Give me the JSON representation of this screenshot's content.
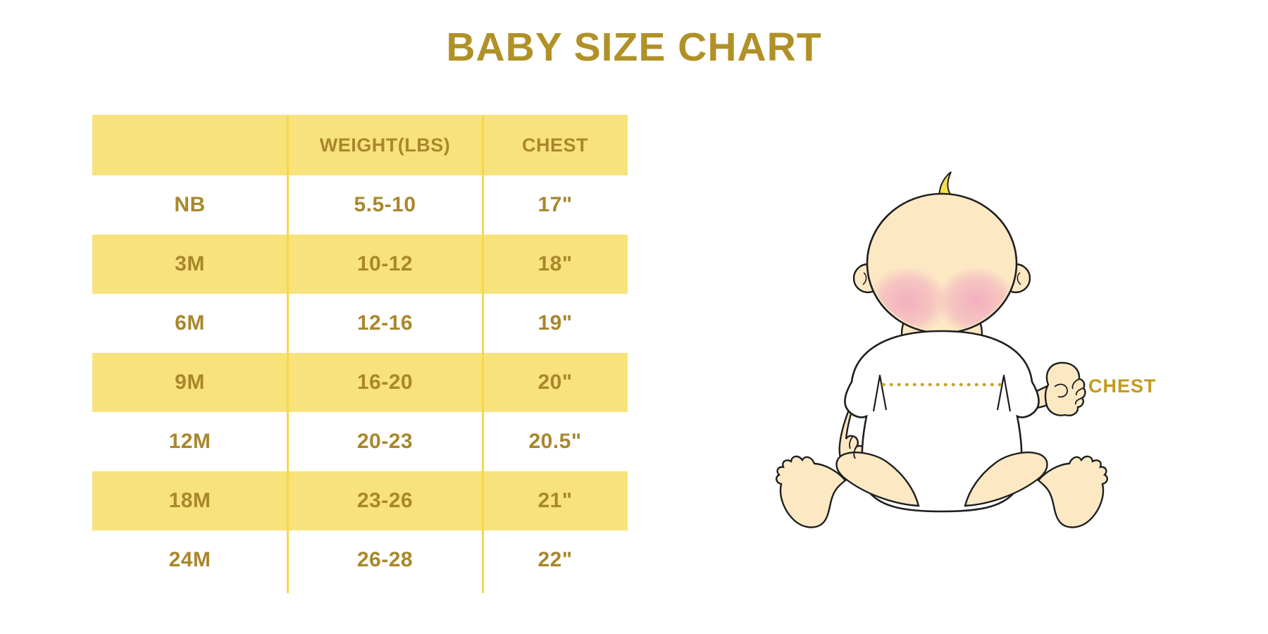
{
  "title": "BABY SIZE CHART",
  "table": {
    "columns": [
      "",
      "WEIGHT(LBS)",
      "CHEST"
    ],
    "rows": [
      {
        "size": "NB",
        "weight": "5.5-10",
        "chest": "17\""
      },
      {
        "size": "3M",
        "weight": "10-12",
        "chest": "18\""
      },
      {
        "size": "6M",
        "weight": "12-16",
        "chest": "19\""
      },
      {
        "size": "9M",
        "weight": "16-20",
        "chest": "20\""
      },
      {
        "size": "12M",
        "weight": "20-23",
        "chest": "20.5\""
      },
      {
        "size": "18M",
        "weight": "23-26",
        "chest": "21\""
      },
      {
        "size": "24M",
        "weight": "26-28",
        "chest": "22\""
      }
    ]
  },
  "illustration": {
    "chest_label": "CHEST"
  },
  "colors": {
    "row_yellow": "#F8E27B",
    "divider_yellow": "#F7D74A",
    "text_gold": "#A9872C",
    "title_gold": "#B19127",
    "label_gold": "#C29A1E",
    "dot_gold": "#C9A12C",
    "skin": "#FCE9C4",
    "blush": "#F2A9BE",
    "hair_yellow": "#F6E04E",
    "outline": "#1F1F1F"
  },
  "chart_data": {
    "type": "table",
    "title": "BABY SIZE CHART",
    "columns": [
      "",
      "WEIGHT(LBS)",
      "CHEST"
    ],
    "rows": [
      [
        "NB",
        "5.5-10",
        "17\""
      ],
      [
        "3M",
        "10-12",
        "18\""
      ],
      [
        "6M",
        "12-16",
        "19\""
      ],
      [
        "9M",
        "16-20",
        "20\""
      ],
      [
        "12M",
        "20-23",
        "20.5\""
      ],
      [
        "18M",
        "23-26",
        "21\""
      ],
      [
        "24M",
        "26-28",
        "22\""
      ]
    ],
    "legend": "none",
    "notes": "Baby clothing size chart with illustration of seated baby; dotted line across chest marked CHEST."
  }
}
